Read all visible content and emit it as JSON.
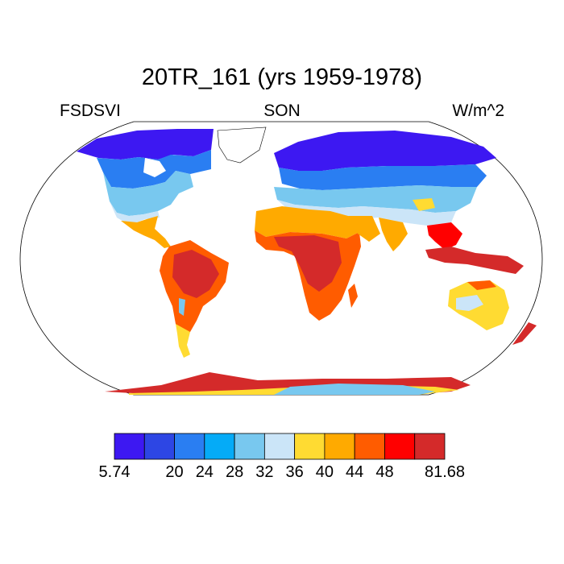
{
  "title": "20TR_161 (yrs 1959-1978)",
  "left_label": "FSDSVI",
  "center_label": "SON",
  "right_label": "W/m^2",
  "map": {
    "projection": "Robinson",
    "land_only": true,
    "ocean_color": "#ffffff",
    "coastline_color": "#000000"
  },
  "colorbar": {
    "colors": [
      "#3d18f2",
      "#2d46e4",
      "#2a7ef2",
      "#05abf7",
      "#78c8ef",
      "#cbe5f8",
      "#ffdb32",
      "#ffaa00",
      "#ff5c00",
      "#ff0000",
      "#d42a2a"
    ],
    "labels": [
      "5.74",
      "20",
      "24",
      "28",
      "32",
      "36",
      "40",
      "44",
      "48",
      "81.68"
    ],
    "label_boundaries": [
      0,
      2,
      3,
      4,
      5,
      6,
      7,
      8,
      9,
      11
    ]
  },
  "chart_data": {
    "type": "heatmap",
    "title": "20TR_161 (yrs 1959-1978)",
    "variable": "FSDSVI",
    "season": "SON",
    "units": "W/m^2",
    "range": [
      5.74,
      81.68
    ],
    "levels": [
      20,
      24,
      28,
      32,
      36,
      40,
      44,
      48
    ]
  }
}
